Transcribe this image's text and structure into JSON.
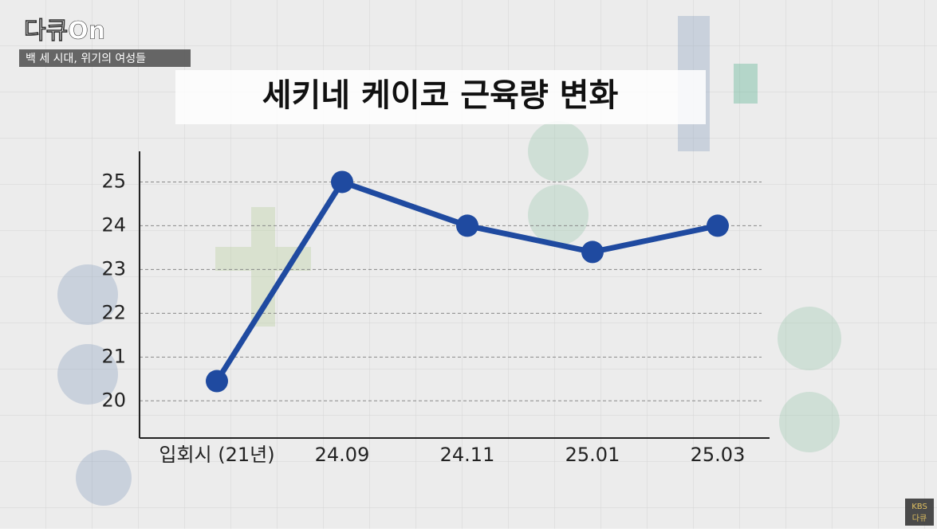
{
  "logo": "다큐On",
  "program_subtitle": "백 세 시대, 위기의 여성들",
  "watermark": [
    "KBS",
    "다큐"
  ],
  "chart_data": {
    "type": "line",
    "title": "세키네 케이코 근육량 변화",
    "categories": [
      "입회시 (21년)",
      "24.09",
      "24.11",
      "25.01",
      "25.03"
    ],
    "values": [
      20.45,
      25,
      24,
      23.4,
      24
    ],
    "color": "#1f4aa0",
    "ylim": [
      19.15,
      25.7
    ],
    "yticks": [
      20,
      21,
      22,
      23,
      24,
      25
    ],
    "grid": true
  }
}
